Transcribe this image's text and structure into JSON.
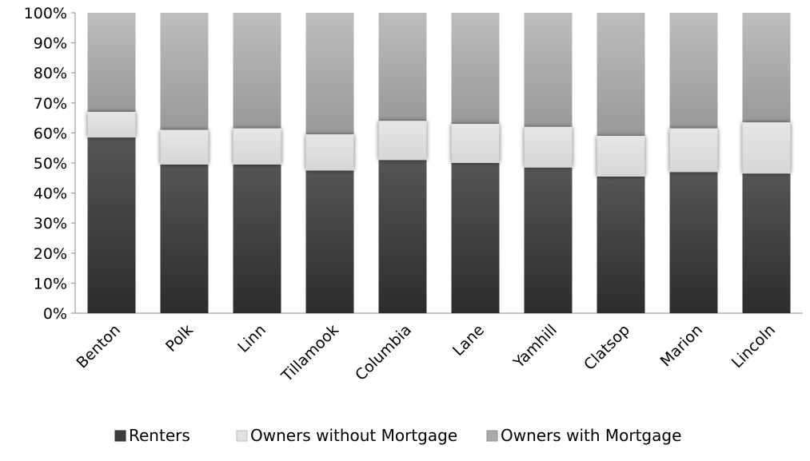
{
  "chart_data": {
    "type": "bar",
    "stacked": true,
    "percent_stacked": true,
    "categories": [
      "Benton",
      "Polk",
      "Linn",
      "Tillamook",
      "Columbia",
      "Lane",
      "Yamhill",
      "Clatsop",
      "Marion",
      "Lincoln"
    ],
    "series": [
      {
        "name": "Renters",
        "values": [
          58.5,
          49.5,
          49.5,
          47.5,
          51,
          50,
          48.5,
          45.5,
          47,
          46.5
        ]
      },
      {
        "name": "Owners without Mortgage",
        "values": [
          8.5,
          11.5,
          12,
          12,
          13,
          13,
          13.5,
          13.5,
          14.5,
          17
        ]
      },
      {
        "name": "Owners with Mortgage",
        "values": [
          33,
          39,
          38.5,
          40.5,
          36,
          37,
          38,
          41,
          38.5,
          36.5
        ]
      }
    ],
    "ylim": [
      0,
      100
    ],
    "yticks": [
      "0%",
      "10%",
      "20%",
      "30%",
      "40%",
      "50%",
      "60%",
      "70%",
      "80%",
      "90%",
      "100%"
    ],
    "title": "",
    "xlabel": "",
    "ylabel": "",
    "grid": false,
    "legend_position": "bottom",
    "colors": {
      "Renters": "#3d3d3d",
      "Owners without Mortgage": "#e0e0e0",
      "Owners with Mortgage": "#b0b0b0"
    }
  }
}
